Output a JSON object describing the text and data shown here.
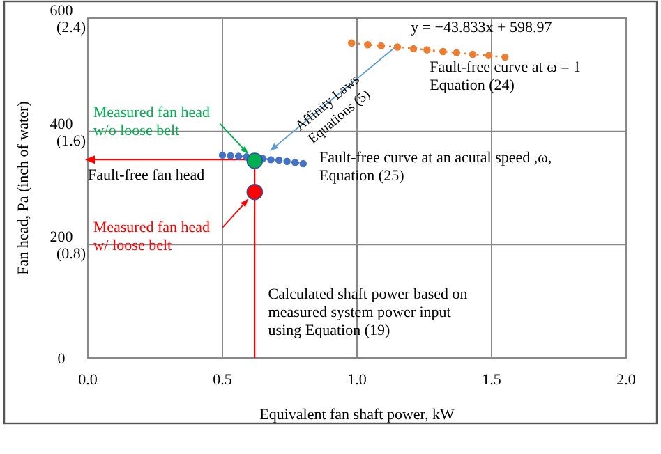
{
  "chart_data": {
    "type": "line",
    "xlabel": "Equivalent fan shaft power, kW",
    "ylabel": "Fan head, Pa (inch of water)",
    "xlim": [
      0,
      2
    ],
    "ylim": [
      0,
      600
    ],
    "y2lim": [
      0,
      2.4
    ],
    "xticks": [
      {
        "value": 0,
        "label": "0.0"
      },
      {
        "value": 0.5,
        "label": "0.5"
      },
      {
        "value": 1,
        "label": "1.0"
      },
      {
        "value": 1.5,
        "label": "1.5"
      },
      {
        "value": 2,
        "label": "2.0"
      }
    ],
    "yticks": [
      0,
      200,
      400,
      600
    ],
    "y2ticks": [
      {
        "value": 0.8,
        "label": "(0.8)"
      },
      {
        "value": 1.6,
        "label": "(1.6)"
      },
      {
        "value": 2.4,
        "label": "(2.4)"
      }
    ],
    "grid": true,
    "marker": "circle",
    "line_style": "dotted",
    "series": [
      {
        "color": "#ed7d31",
        "x": [
          0.98,
          1.04,
          1.09,
          1.15,
          1.21,
          1.26,
          1.32,
          1.37,
          1.43,
          1.49,
          1.55
        ],
        "values": [
          556,
          553,
          551,
          549,
          546,
          544,
          541,
          539,
          536,
          534,
          531
        ]
      },
      {
        "color": "#4472c4",
        "x": [
          0.5,
          0.53,
          0.56,
          0.59,
          0.62,
          0.65,
          0.68,
          0.71,
          0.74,
          0.77,
          0.8
        ],
        "values": [
          358,
          357,
          356,
          355,
          354,
          352,
          350,
          349,
          347,
          345,
          343
        ]
      },
      {
        "type": "scatter",
        "color": "#00b050",
        "x": [
          0.62
        ],
        "values": [
          348
        ]
      },
      {
        "type": "scatter",
        "color": "#ff0000",
        "x": [
          0.62
        ],
        "values": [
          293
        ]
      }
    ],
    "ref_lines": [
      {
        "axis": "x",
        "value": 0.62,
        "color": "#ff0000"
      },
      {
        "axis": "y",
        "value": 350,
        "color": "#ff0000"
      }
    ],
    "annotations": [
      {
        "text": "y = −43.833x + 598.97",
        "x": 1.15,
        "y": 549
      },
      "Fault-free curve at ω = 1\nEquation (24)",
      "Fault-free curve at an acutal speed ,ω,\nEquation (25)",
      "Fault-free fan head",
      {
        "text": "Measured fan head\nw/o loose belt",
        "x": 0.62,
        "y": 348
      },
      {
        "text": "Measured fan head\nw/ loose belt",
        "x": 0.62,
        "y": 293
      },
      "Calculated shaft power based on\nmeasured system power input\nusing Equation (19)",
      {
        "text": "Affinity Laws\nEquations (5)",
        "x": 0.65,
        "y": 355
      }
    ]
  }
}
